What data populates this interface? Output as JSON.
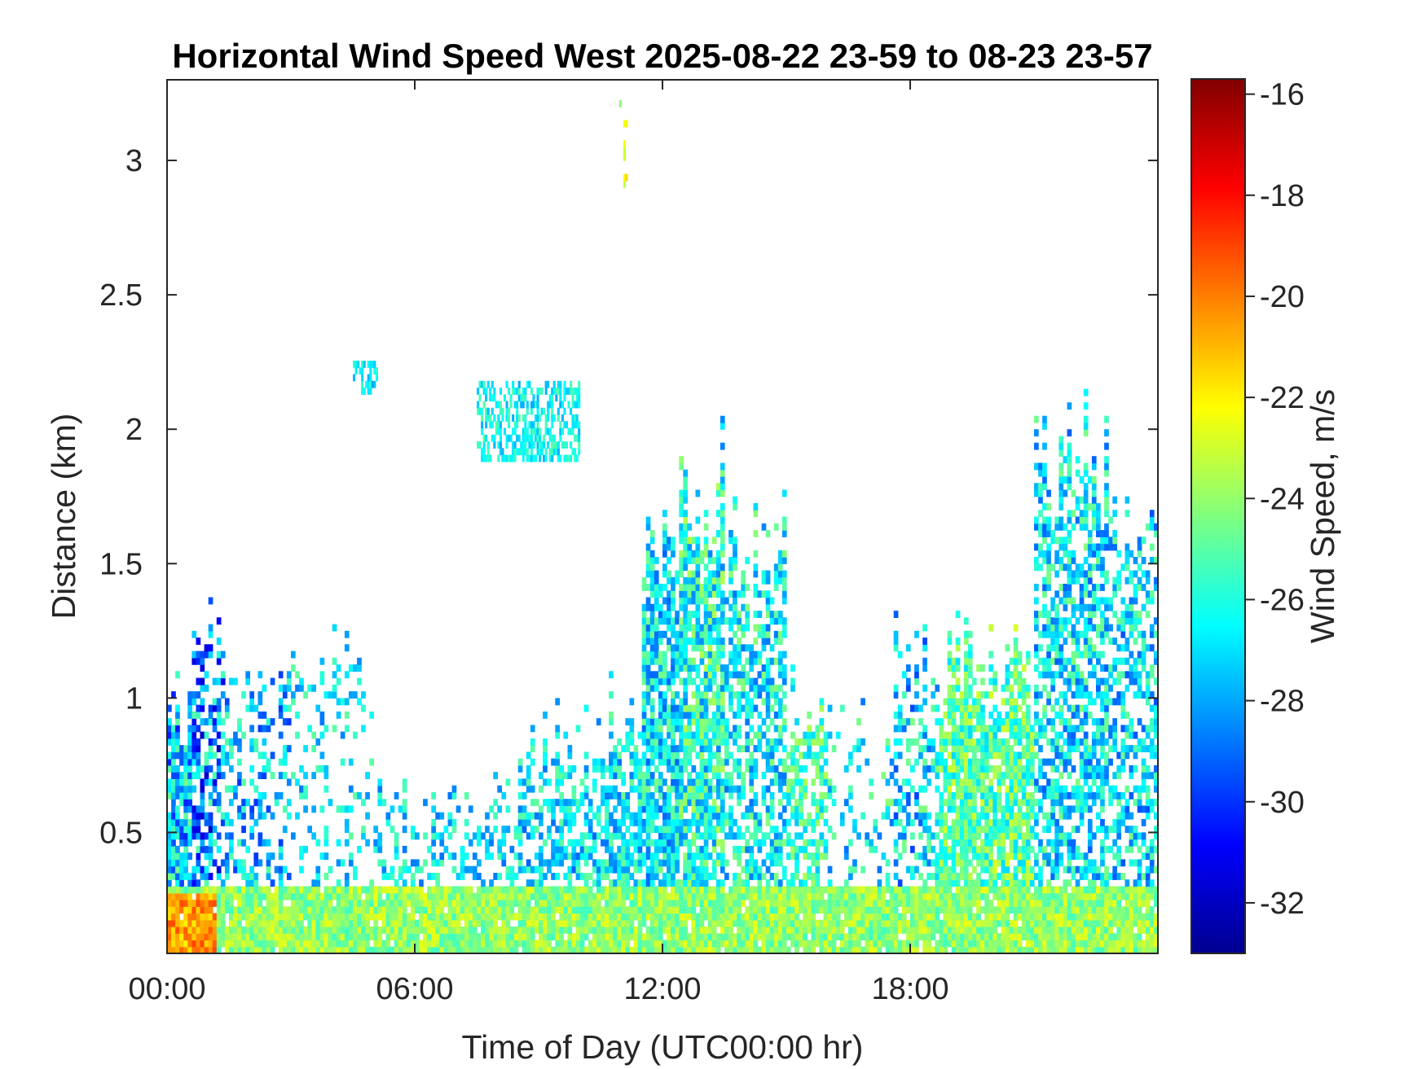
{
  "chart_data": {
    "type": "heatmap",
    "title": "Horizontal Wind Speed West 2025-08-22 23-59 to 08-23 23-57",
    "xlabel": "Time of Day (UTC00:00 hr)",
    "ylabel": "Distance (km)",
    "colorbar_label": "Wind Speed, m/s",
    "xlim": [
      0,
      24
    ],
    "ylim": [
      0.05,
      3.3
    ],
    "clim": [
      -33,
      -15.7
    ],
    "colormap": "jet",
    "grid": false,
    "x_ticks": [
      {
        "value": 0,
        "label": "00:00"
      },
      {
        "value": 6,
        "label": "06:00"
      },
      {
        "value": 12,
        "label": "12:00"
      },
      {
        "value": 18,
        "label": "18:00"
      }
    ],
    "y_ticks": [
      {
        "value": 0.5,
        "label": "0.5"
      },
      {
        "value": 1,
        "label": "1"
      },
      {
        "value": 1.5,
        "label": "1.5"
      },
      {
        "value": 2,
        "label": "2"
      },
      {
        "value": 2.5,
        "label": "2.5"
      },
      {
        "value": 3,
        "label": "3"
      }
    ],
    "colorbar_ticks": [
      {
        "value": -16,
        "label": "-16"
      },
      {
        "value": -18,
        "label": "-18"
      },
      {
        "value": -20,
        "label": "-20"
      },
      {
        "value": -22,
        "label": "-22"
      },
      {
        "value": -24,
        "label": "-24"
      },
      {
        "value": -26,
        "label": "-26"
      },
      {
        "value": -28,
        "label": "-28"
      },
      {
        "value": -30,
        "label": "-30"
      },
      {
        "value": -32,
        "label": "-32"
      }
    ],
    "regions": [
      {
        "x0": 0,
        "x1": 0.6,
        "y_top": 1.0,
        "speed": -27.5,
        "spread": 3.0,
        "density": 0.85
      },
      {
        "x0": 0.6,
        "x1": 1.4,
        "y_top": 1.2,
        "speed": -28.5,
        "spread": 3.5,
        "density": 0.55
      },
      {
        "x0": 1.4,
        "x1": 3.0,
        "y_top": 1.1,
        "speed": -27.5,
        "spread": 2.5,
        "density": 0.35
      },
      {
        "x0": 3.0,
        "x1": 5.0,
        "y_top": 1.25,
        "speed": -26.8,
        "spread": 2.0,
        "density": 0.18
      },
      {
        "x0": 5.0,
        "x1": 8.5,
        "y_top": 0.65,
        "speed": -27.0,
        "spread": 2.0,
        "density": 0.35
      },
      {
        "x0": 8.5,
        "x1": 10.5,
        "y_top": 0.9,
        "speed": -27.0,
        "spread": 2.2,
        "density": 0.55
      },
      {
        "x0": 10.5,
        "x1": 11.5,
        "y_top": 1.0,
        "speed": -26.8,
        "spread": 2.2,
        "density": 0.7
      },
      {
        "x0": 11.5,
        "x1": 12.4,
        "y_top": 1.65,
        "speed": -26.8,
        "spread": 2.4,
        "density": 0.8
      },
      {
        "x0": 12.4,
        "x1": 13.5,
        "y_top": 1.85,
        "speed": -26.0,
        "spread": 2.6,
        "density": 0.8
      },
      {
        "x0": 13.5,
        "x1": 15.0,
        "y_top": 1.6,
        "speed": -26.5,
        "spread": 2.4,
        "density": 0.55
      },
      {
        "x0": 15.0,
        "x1": 16.0,
        "y_top": 1.0,
        "speed": -25.5,
        "spread": 2.0,
        "density": 0.6
      },
      {
        "x0": 16.0,
        "x1": 17.6,
        "y_top": 0.9,
        "speed": -26.5,
        "spread": 2.5,
        "density": 0.2
      },
      {
        "x0": 17.6,
        "x1": 18.7,
        "y_top": 1.2,
        "speed": -27.0,
        "spread": 2.8,
        "density": 0.45
      },
      {
        "x0": 18.7,
        "x1": 21.0,
        "y_top": 1.15,
        "speed": -25.0,
        "spread": 2.2,
        "density": 0.85
      },
      {
        "x0": 21.0,
        "x1": 22.8,
        "y_top": 1.95,
        "speed": -26.8,
        "spread": 2.5,
        "density": 0.6
      },
      {
        "x0": 22.8,
        "x1": 24.0,
        "y_top": 1.7,
        "speed": -27.0,
        "spread": 2.5,
        "density": 0.5
      }
    ],
    "low_layer": {
      "y_top": 0.3,
      "speed": -24.0,
      "spread": 1.5,
      "density": 0.95
    },
    "patches": [
      {
        "x0": 4.5,
        "x1": 5.1,
        "y0": 2.13,
        "y1": 2.23,
        "speed": -26.8
      },
      {
        "x0": 7.5,
        "x1": 10.0,
        "y0": 1.88,
        "y1": 2.16,
        "speed": -26.5
      },
      {
        "x0": 11.05,
        "x1": 11.15,
        "y0": 2.9,
        "y1": 3.14,
        "speed": -22.5
      },
      {
        "x0": 10.9,
        "x1": 11.0,
        "y0": 3.2,
        "y1": 3.25,
        "speed": -25.5
      }
    ]
  }
}
